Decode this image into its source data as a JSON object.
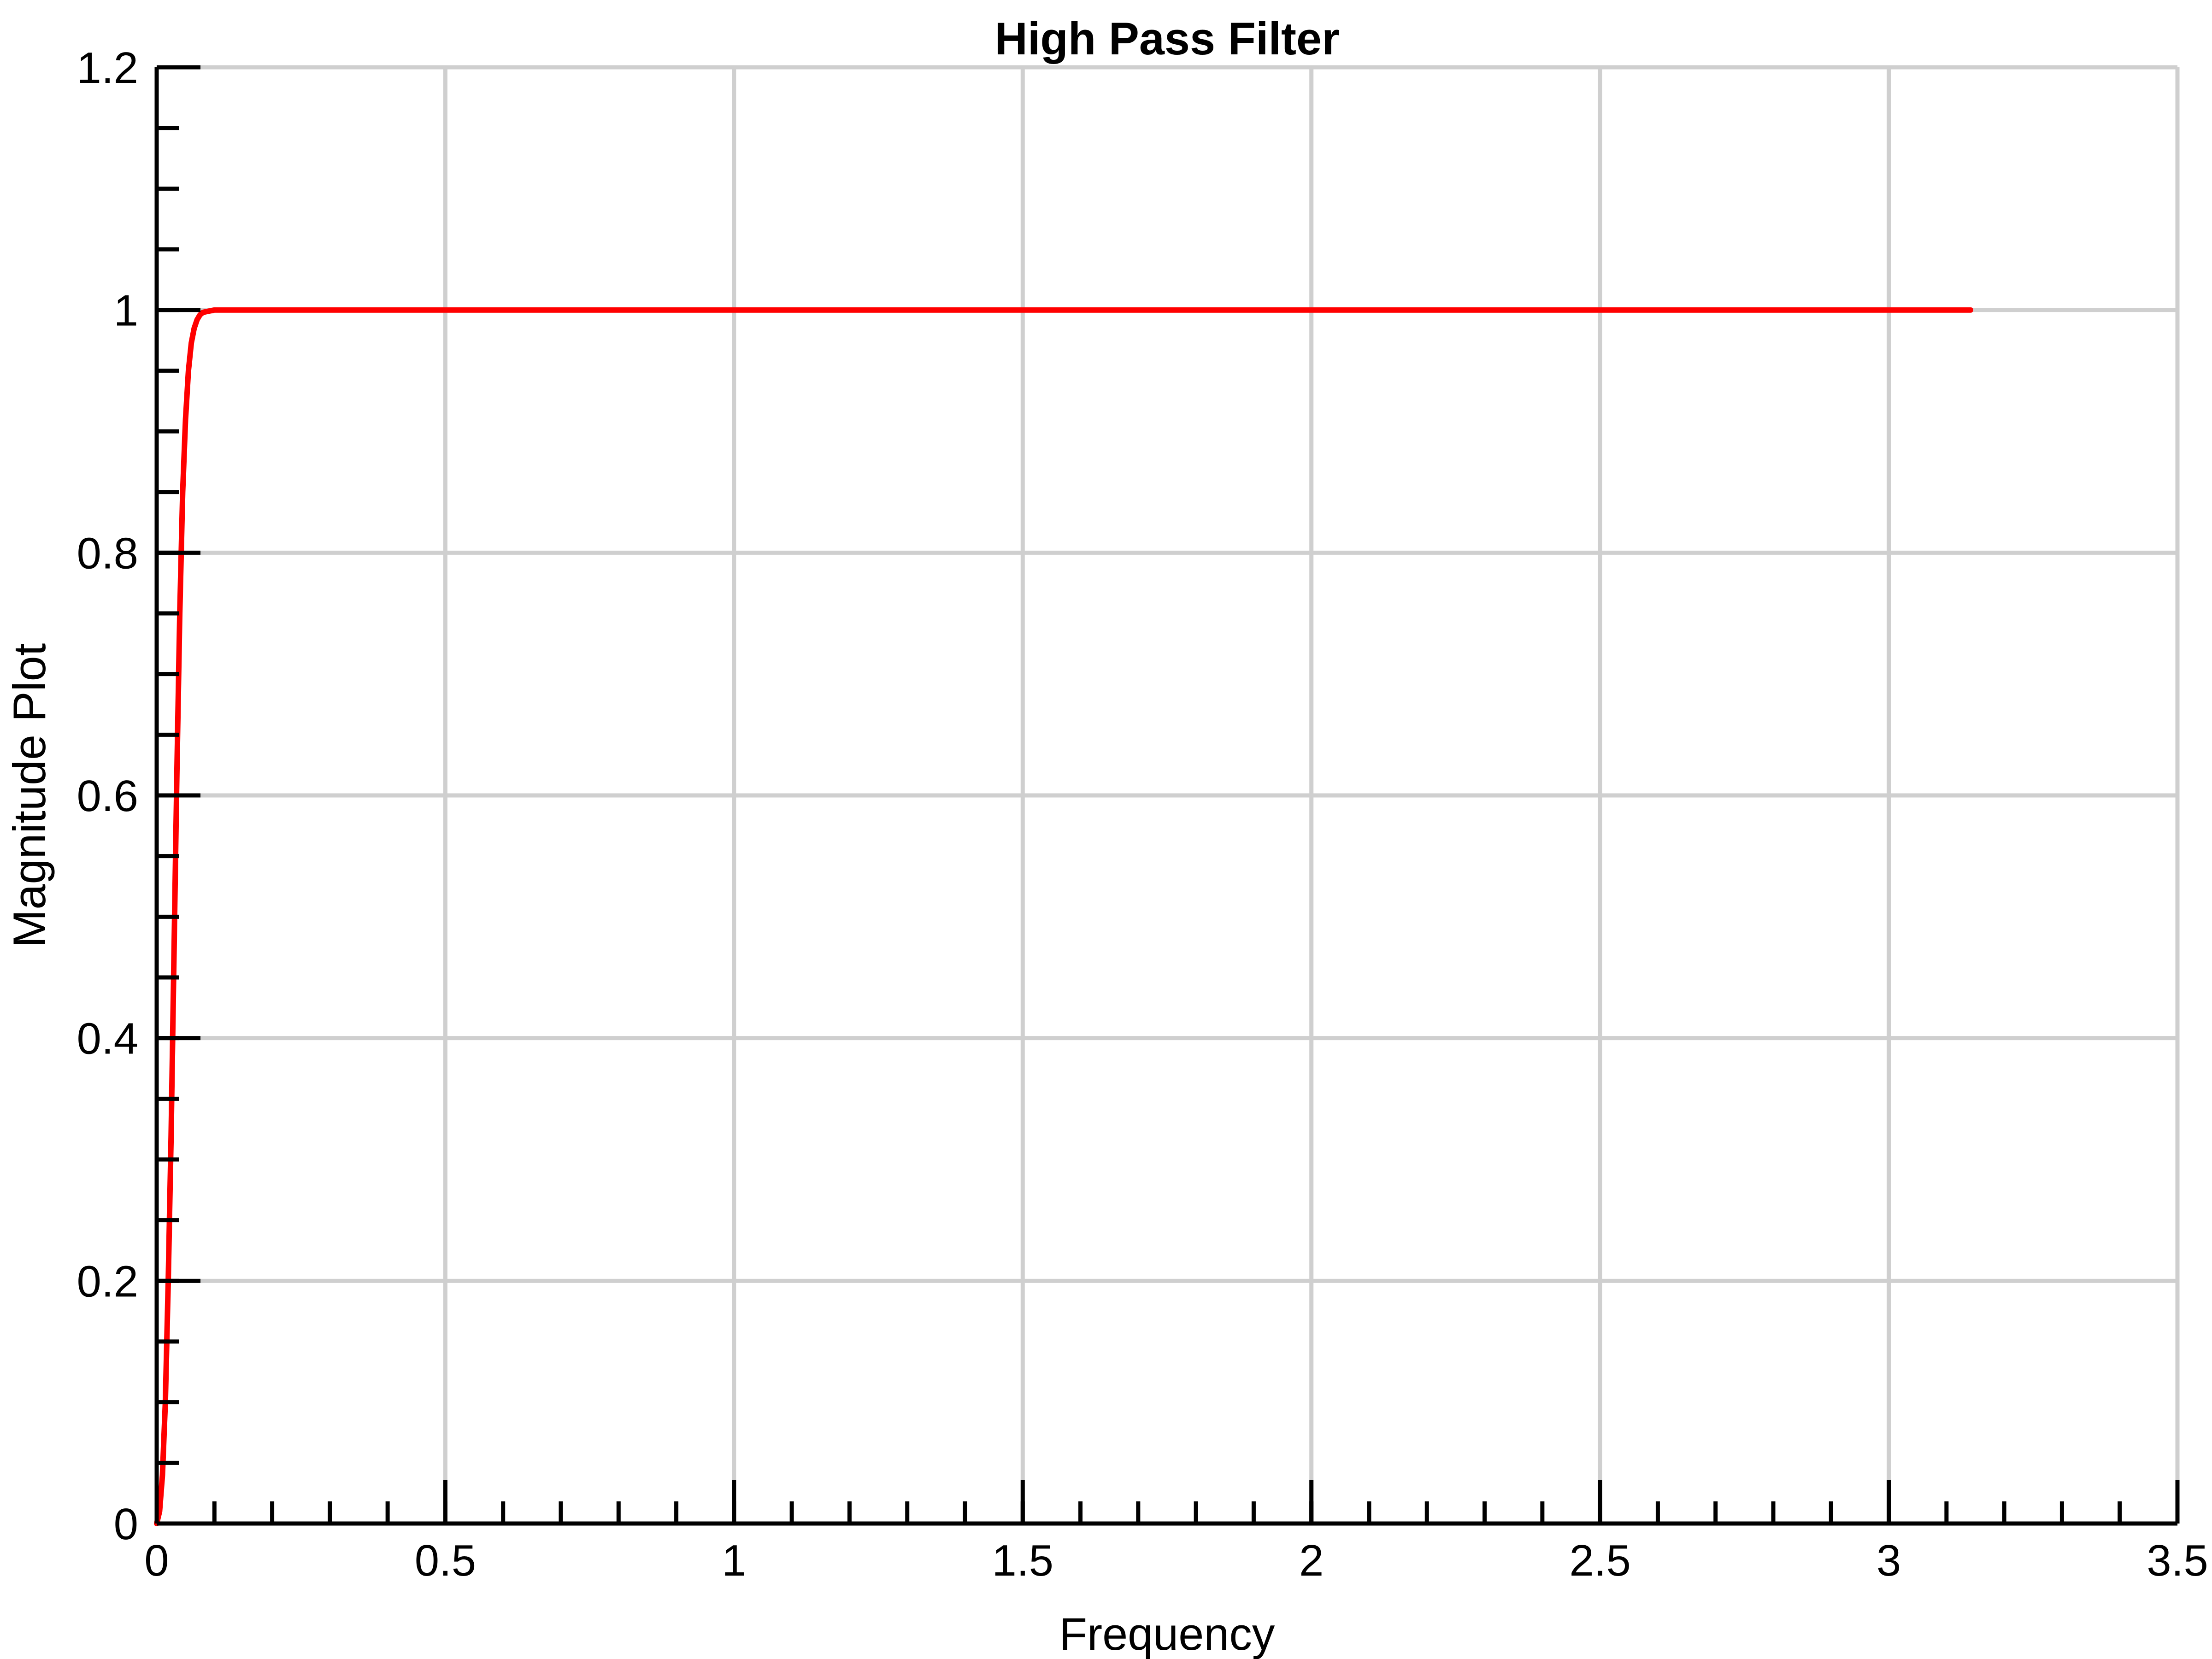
{
  "chart_data": {
    "type": "line",
    "title": "High Pass Filter",
    "xlabel": "Frequency",
    "ylabel": "Magnitude Plot",
    "xlim": [
      0,
      3.5
    ],
    "ylim": [
      0,
      1.2
    ],
    "x_ticks": [
      0,
      0.5,
      1,
      1.5,
      2,
      2.5,
      3,
      3.5
    ],
    "x_tick_labels": [
      "0",
      "0.5",
      "1",
      "1.5",
      "2",
      "2.5",
      "3",
      "3.5"
    ],
    "y_ticks": [
      0,
      0.2,
      0.4,
      0.6,
      0.8,
      1,
      1.2
    ],
    "y_tick_labels": [
      "0",
      "0.2",
      "0.4",
      "0.6",
      "0.8",
      "1",
      "1.2"
    ],
    "x_minor_step": 0.1,
    "y_minor_step": 0.05,
    "grid": true,
    "series": [
      {
        "color": "#ff0000",
        "x": [
          0,
          0.005,
          0.01,
          0.015,
          0.02,
          0.025,
          0.03,
          0.035,
          0.04,
          0.045,
          0.05,
          0.055,
          0.06,
          0.065,
          0.07,
          0.075,
          0.08,
          0.09,
          0.1,
          0.12,
          0.15,
          0.2,
          0.5,
          1,
          1.5,
          2,
          2.5,
          3,
          3.1416
        ],
        "y": [
          0,
          0.01,
          0.04,
          0.1,
          0.2,
          0.32,
          0.47,
          0.62,
          0.75,
          0.85,
          0.91,
          0.95,
          0.973,
          0.985,
          0.992,
          0.996,
          0.998,
          0.999,
          1,
          1,
          1,
          1,
          1,
          1,
          1,
          1,
          1,
          1,
          1
        ]
      }
    ]
  }
}
